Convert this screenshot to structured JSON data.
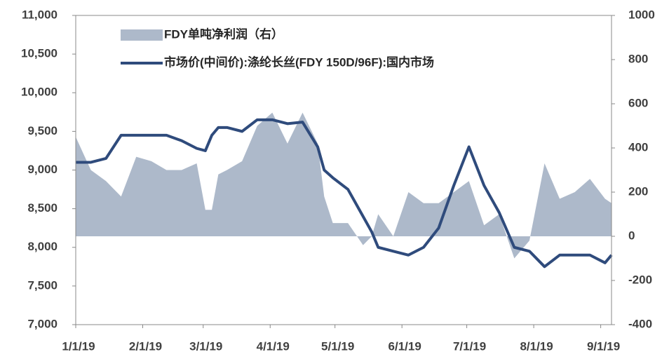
{
  "chart_data": {
    "type": "line-area",
    "x": [
      "2019-01-01",
      "2019-01-08",
      "2019-01-15",
      "2019-01-22",
      "2019-01-29",
      "2019-02-05",
      "2019-02-12",
      "2019-02-19",
      "2019-02-26",
      "2019-03-02",
      "2019-03-05",
      "2019-03-08",
      "2019-03-12",
      "2019-03-19",
      "2019-03-26",
      "2019-04-02",
      "2019-04-09",
      "2019-04-16",
      "2019-04-23",
      "2019-04-26",
      "2019-04-30",
      "2019-05-07",
      "2019-05-14",
      "2019-05-18",
      "2019-05-21",
      "2019-05-28",
      "2019-06-04",
      "2019-06-11",
      "2019-06-18",
      "2019-06-25",
      "2019-07-02",
      "2019-07-09",
      "2019-07-16",
      "2019-07-23",
      "2019-07-30",
      "2019-08-06",
      "2019-08-13",
      "2019-08-20",
      "2019-08-27",
      "2019-09-03",
      "2019-09-06"
    ],
    "series": [
      {
        "name": "FDY单吨净利润（右）",
        "type": "area",
        "axis": "y2",
        "color": "#adb9ca",
        "values": [
          450,
          300,
          250,
          180,
          360,
          340,
          300,
          300,
          330,
          120,
          120,
          280,
          300,
          340,
          500,
          560,
          420,
          560,
          420,
          180,
          60,
          60,
          -40,
          0,
          100,
          0,
          200,
          150,
          150,
          200,
          250,
          50,
          100,
          -100,
          -20,
          330,
          170,
          200,
          260,
          170,
          150
        ]
      },
      {
        "name": "市场价(中间价):涤纶长丝(FDY 150D/96F):国内市场",
        "type": "line",
        "color": "#2f4b7c",
        "values": [
          9100,
          9100,
          9150,
          9450,
          9450,
          9450,
          9450,
          9380,
          9280,
          9250,
          9450,
          9550,
          9550,
          9500,
          9650,
          9650,
          9600,
          9620,
          9300,
          9000,
          8900,
          8750,
          8400,
          8200,
          8000,
          7950,
          7900,
          8000,
          8250,
          8800,
          9300,
          8800,
          8450,
          8000,
          7950,
          7750,
          7900,
          7900,
          7900,
          7800,
          7900
        ]
      }
    ],
    "xlim": [
      "2019-01-01",
      "2019-09-06"
    ],
    "xticks": [
      {
        "value": "2019-01-01",
        "label": "1/1/19"
      },
      {
        "value": "2019-02-01",
        "label": "2/1/19"
      },
      {
        "value": "2019-03-01",
        "label": "3/1/19"
      },
      {
        "value": "2019-04-01",
        "label": "4/1/19"
      },
      {
        "value": "2019-05-01",
        "label": "5/1/19"
      },
      {
        "value": "2019-06-01",
        "label": "6/1/19"
      },
      {
        "value": "2019-07-01",
        "label": "7/1/19"
      },
      {
        "value": "2019-08-01",
        "label": "8/1/19"
      },
      {
        "value": "2019-09-01",
        "label": "9/1/19"
      }
    ],
    "ylim": [
      7000,
      11000
    ],
    "yticks": [
      {
        "value": 7000,
        "label": "7,000"
      },
      {
        "value": 7500,
        "label": "7,500"
      },
      {
        "value": 8000,
        "label": "8,000"
      },
      {
        "value": 8500,
        "label": "8,500"
      },
      {
        "value": 9000,
        "label": "9,000"
      },
      {
        "value": 9500,
        "label": "9,500"
      },
      {
        "value": 10000,
        "label": "10,000"
      },
      {
        "value": 10500,
        "label": "10,500"
      },
      {
        "value": 11000,
        "label": "11,000"
      }
    ],
    "y2lim": [
      -400,
      1000
    ],
    "y2ticks": [
      -400,
      -200,
      0,
      200,
      400,
      600,
      800,
      1000
    ]
  }
}
